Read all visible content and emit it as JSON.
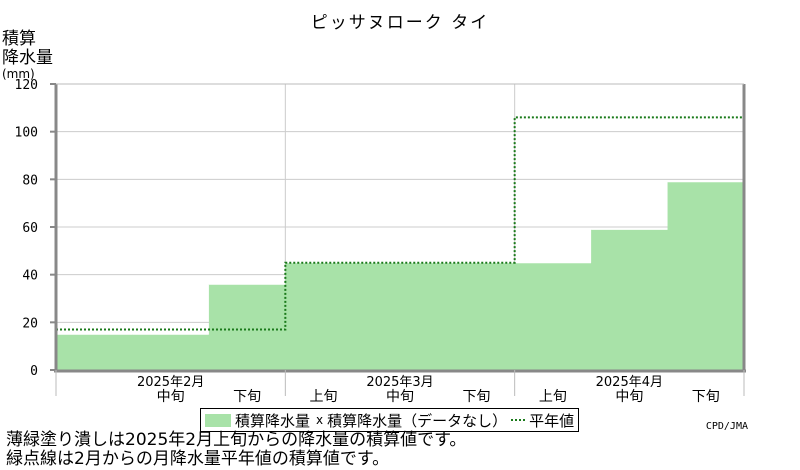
{
  "title": "ピッサヌローク タイ",
  "ylabel_line1": "積算",
  "ylabel_line2": "降水量",
  "ylabel_unit": "(mm)",
  "legend": {
    "actual": "積算降水量",
    "nodata_mark": "x",
    "nodata": "積算降水量（データなし）",
    "normal": "平年値"
  },
  "credit": "CPD/JMA",
  "notes": [
    "薄緑塗り潰しは2025年2月上旬からの降水量の積算値です。",
    "緑点線は2月からの月降水量平年値の積算値です。"
  ],
  "colors": {
    "fill": "#a8e2a8",
    "normal_line": "#1a7a1a",
    "grid": "#cccccc"
  },
  "chart_data": {
    "type": "area",
    "ylim": [
      0,
      120
    ],
    "yticks": [
      0,
      20,
      40,
      60,
      80,
      100,
      120
    ],
    "grid": true,
    "months": [
      "2025年2月",
      "2025年3月",
      "2025年4月"
    ],
    "dekad_labels": [
      "上旬",
      "中旬",
      "下旬"
    ],
    "periods": [
      "2月上旬",
      "2月中旬",
      "2月下旬",
      "3月上旬",
      "3月中旬",
      "3月下旬",
      "4月上旬",
      "4月中旬",
      "4月下旬"
    ],
    "visible_dekad_labels": [
      "中旬",
      "下旬",
      "上旬",
      "中旬",
      "下旬",
      "上旬",
      "中旬",
      "下旬"
    ],
    "series": [
      {
        "name": "積算降水量",
        "values": [
          15,
          15,
          36,
          45,
          45,
          45,
          45,
          59,
          79
        ]
      },
      {
        "name": "平年値",
        "values": [
          17,
          17,
          17,
          45,
          45,
          45,
          106,
          106,
          106
        ]
      }
    ]
  }
}
